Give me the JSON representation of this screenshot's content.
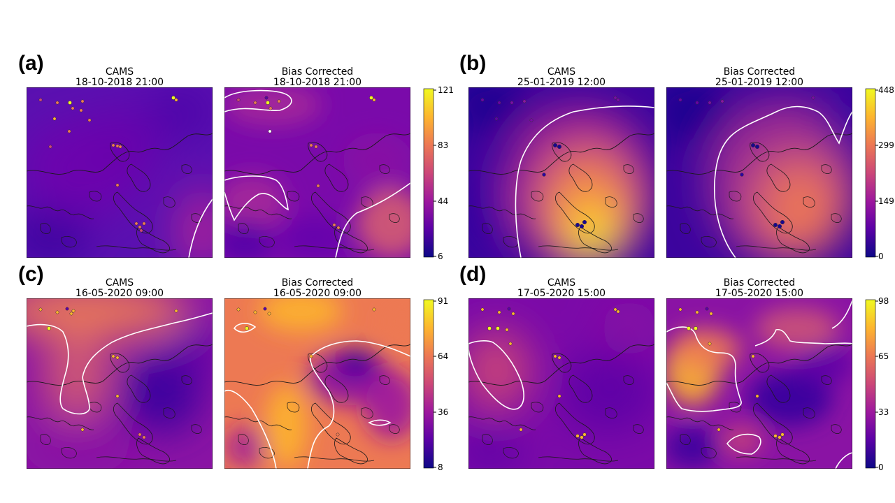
{
  "panel_groups": [
    {
      "label": "(a)",
      "left": {
        "line1": "CAMS",
        "line2": "18-10-2018 21:00"
      },
      "right": {
        "line1": "Bias Corrected",
        "line2": "18-10-2018 21:00"
      },
      "colorbar_ticks": [
        "121",
        "83",
        "44",
        "6"
      ]
    },
    {
      "label": "(b)",
      "left": {
        "line1": "CAMS",
        "line2": "25-01-2019 12:00"
      },
      "right": {
        "line1": "Bias Corrected",
        "line2": "25-01-2019 12:00"
      },
      "colorbar_ticks": [
        "448",
        "299",
        "149",
        "0"
      ]
    },
    {
      "label": "(c)",
      "left": {
        "line1": "CAMS",
        "line2": "16-05-2020 09:00"
      },
      "right": {
        "line1": "Bias Corrected",
        "line2": "16-05-2020 09:00"
      },
      "colorbar_ticks": [
        "91",
        "64",
        "36",
        "8"
      ]
    },
    {
      "label": "(d)",
      "left": {
        "line1": "CAMS",
        "line2": "17-05-2020 15:00"
      },
      "right": {
        "line1": "Bias Corrected",
        "line2": "17-05-2020 15:00"
      },
      "colorbar_ticks": [
        "98",
        "65",
        "33",
        "0"
      ]
    }
  ],
  "colormap": {
    "name": "plasma",
    "stops": [
      "#0d0887",
      "#5c01a6",
      "#9c179e",
      "#cc4778",
      "#ed7953",
      "#fdb42f",
      "#f0f921"
    ],
    "contour_color": "#ffffff",
    "coastline_color": "#1a1a1a"
  }
}
